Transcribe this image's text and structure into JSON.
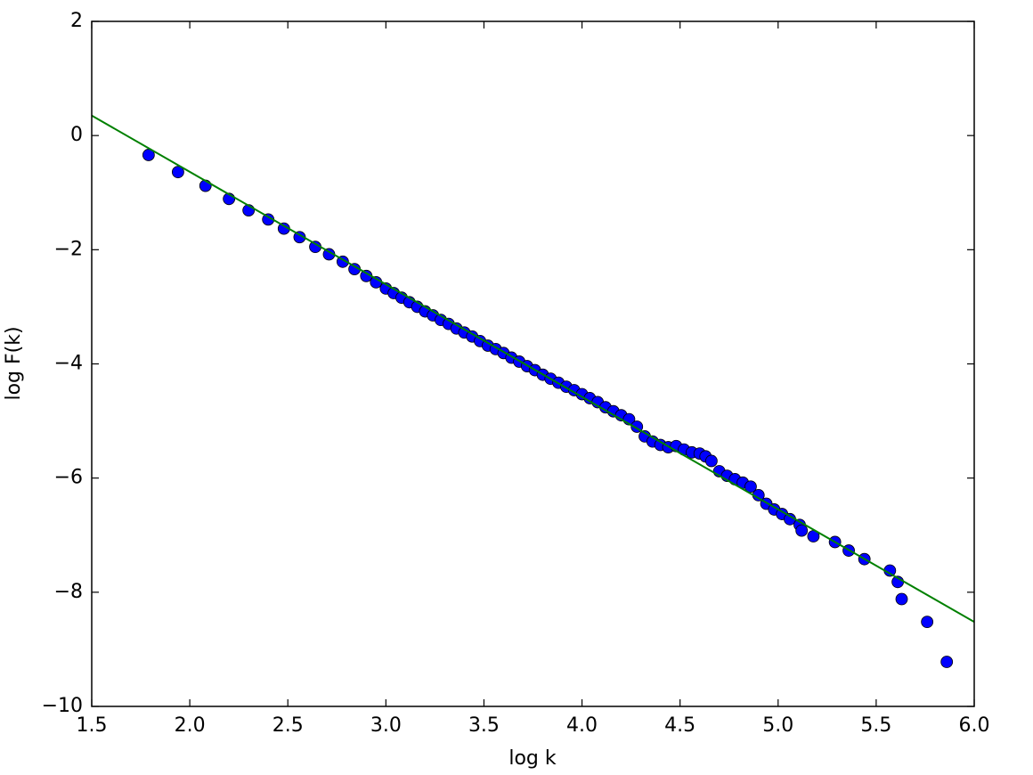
{
  "chart_data": {
    "type": "scatter",
    "x_label": "log k",
    "y_label": "log F(k)",
    "xlim": [
      1.5,
      6.0
    ],
    "ylim": [
      -10,
      2
    ],
    "xticks": [
      1.5,
      {
        "value": 2.0,
        "label": "2.0"
      },
      2.5,
      {
        "value": 3.0,
        "label": "3.0"
      },
      3.5,
      {
        "value": 4.0,
        "label": "4.0"
      },
      4.5,
      {
        "value": 5.0,
        "label": "5.0"
      },
      5.5,
      {
        "value": 6.0,
        "label": "6.0"
      }
    ],
    "yticks": [
      {
        "value": -10,
        "label": "−10"
      },
      {
        "value": -8,
        "label": "−8"
      },
      {
        "value": -6,
        "label": "−6"
      },
      {
        "value": -4,
        "label": "−4"
      },
      {
        "value": -2,
        "label": "−2"
      },
      0,
      2
    ],
    "grid": false,
    "series": [
      {
        "type": "scatter",
        "color": "#0000ff",
        "x": [
          1.79,
          1.94,
          2.08,
          2.2,
          2.3,
          2.4,
          2.48,
          2.56,
          2.64,
          2.71,
          2.78,
          2.84,
          2.9,
          2.95,
          3.0,
          3.04,
          3.08,
          3.12,
          3.16,
          3.2,
          3.24,
          3.28,
          3.32,
          3.36,
          3.4,
          3.44,
          3.48,
          3.52,
          3.56,
          3.6,
          3.64,
          3.68,
          3.72,
          3.76,
          3.8,
          3.84,
          3.88,
          3.92,
          3.96,
          4.0,
          4.04,
          4.08,
          4.12,
          4.16,
          4.2,
          4.24,
          4.28,
          4.32,
          4.36,
          4.4,
          4.44,
          4.48,
          4.52,
          4.56,
          4.6,
          4.63,
          4.66,
          4.7,
          4.74,
          4.78,
          4.82,
          4.86,
          4.9,
          4.94,
          4.98,
          5.02,
          5.06,
          5.11,
          5.12,
          5.18,
          5.29,
          5.36,
          5.44,
          5.57,
          5.61,
          5.63,
          5.76,
          5.86
        ],
        "values": [
          -0.34,
          -0.64,
          -0.88,
          -1.11,
          -1.31,
          -1.47,
          -1.63,
          -1.78,
          -1.95,
          -2.08,
          -2.21,
          -2.34,
          -2.46,
          -2.57,
          -2.68,
          -2.76,
          -2.84,
          -2.92,
          -3.0,
          -3.08,
          -3.15,
          -3.23,
          -3.3,
          -3.38,
          -3.45,
          -3.52,
          -3.6,
          -3.68,
          -3.74,
          -3.81,
          -3.89,
          -3.96,
          -4.04,
          -4.11,
          -4.19,
          -4.26,
          -4.33,
          -4.4,
          -4.46,
          -4.53,
          -4.6,
          -4.67,
          -4.76,
          -4.83,
          -4.9,
          -4.97,
          -5.1,
          -5.27,
          -5.36,
          -5.42,
          -5.46,
          -5.44,
          -5.5,
          -5.55,
          -5.57,
          -5.62,
          -5.7,
          -5.88,
          -5.96,
          -6.02,
          -6.08,
          -6.15,
          -6.3,
          -6.45,
          -6.55,
          -6.63,
          -6.72,
          -6.82,
          -6.92,
          -7.02,
          -7.12,
          -7.27,
          -7.42,
          -7.62,
          -7.82,
          -8.12,
          -8.52,
          -9.22
        ]
      },
      {
        "type": "line",
        "color": "#008000",
        "x": [
          1.5,
          6.0
        ],
        "values": [
          0.35,
          -8.52
        ]
      }
    ]
  }
}
